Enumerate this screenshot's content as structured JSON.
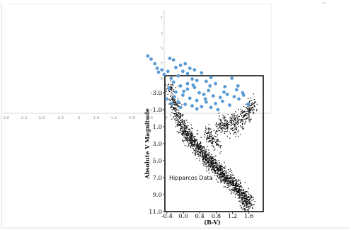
{
  "chart_data": [
    {
      "type": "scatter",
      "title": "",
      "xlabel": "",
      "ylabel": "",
      "x_ticks": [
        "-3.6",
        "-3.2",
        "-2.8",
        "-2.4",
        "-2",
        "-1.6",
        "-1.2",
        "-0.8",
        "-0.4",
        "0",
        "2"
      ],
      "y_ticks": [
        "1",
        "3",
        "5",
        "7",
        "9",
        "11",
        "13"
      ],
      "ylim": [
        15,
        1
      ],
      "series": [
        {
          "color": "#5b9bd5",
          "points": [
            [
              -0.35,
              6.0
            ],
            [
              -0.28,
              6.4
            ],
            [
              -0.2,
              7.0
            ],
            [
              -0.15,
              7.6
            ],
            [
              -0.12,
              8.1
            ],
            [
              -0.05,
              7.8
            ],
            [
              0.0,
              8.4
            ],
            [
              0.08,
              8.0
            ],
            [
              0.12,
              6.3
            ],
            [
              0.15,
              8.9
            ],
            [
              0.2,
              6.5
            ],
            [
              0.25,
              7.5
            ],
            [
              0.3,
              8.6
            ],
            [
              0.35,
              7.2
            ],
            [
              0.4,
              8.0
            ],
            [
              0.45,
              7.0
            ],
            [
              0.5,
              8.3
            ],
            [
              0.55,
              7.6
            ],
            [
              0.6,
              9.0
            ],
            [
              0.65,
              7.8
            ],
            [
              0.7,
              9.2
            ],
            [
              0.8,
              8.2
            ],
            [
              0.9,
              9.3
            ],
            [
              1.0,
              8.8
            ],
            [
              1.1,
              9.6
            ],
            [
              1.3,
              10.0
            ],
            [
              1.45,
              8.9
            ],
            [
              1.55,
              10.4
            ],
            [
              1.7,
              11.1
            ],
            [
              1.8,
              12.3
            ],
            [
              0.2,
              9.4
            ],
            [
              0.35,
              9.9
            ],
            [
              0.5,
              10.3
            ],
            [
              0.65,
              10.1
            ],
            [
              0.75,
              10.8
            ],
            [
              0.85,
              11.0
            ],
            [
              0.95,
              10.5
            ],
            [
              1.05,
              11.2
            ],
            [
              1.2,
              11.4
            ],
            [
              1.35,
              11.0
            ],
            [
              1.5,
              11.3
            ],
            [
              1.6,
              11.6
            ],
            [
              0.1,
              10.2
            ],
            [
              0.25,
              10.7
            ],
            [
              0.4,
              11.1
            ],
            [
              0.55,
              11.5
            ],
            [
              0.7,
              11.8
            ],
            [
              0.9,
              12.0
            ],
            [
              1.1,
              12.2
            ],
            [
              1.25,
              11.9
            ],
            [
              1.4,
              12.4
            ],
            [
              0.3,
              12.0
            ],
            [
              0.45,
              12.3
            ],
            [
              0.6,
              12.5
            ],
            [
              0.8,
              12.6
            ],
            [
              1.0,
              12.7
            ],
            [
              0.05,
              11.6
            ],
            [
              0.15,
              12.2
            ],
            [
              0.35,
              12.7
            ],
            [
              0.7,
              12.9
            ],
            [
              1.15,
              13.0
            ],
            [
              0.5,
              9.6
            ],
            [
              0.62,
              9.8
            ],
            [
              0.42,
              10.6
            ],
            [
              0.88,
              11.6
            ],
            [
              0.22,
              11.3
            ],
            [
              1.58,
              9.9
            ],
            [
              1.68,
              10.8
            ],
            [
              0.98,
              9.9
            ],
            [
              1.28,
              10.7
            ]
          ]
        }
      ]
    },
    {
      "type": "scatter",
      "title": "",
      "xlabel": "(B-V)",
      "ylabel": "Absolute V Magnitude",
      "annotation": "Hipparcos Data",
      "x_ticks": [
        "-0.4",
        "0.0",
        "0.4",
        "0.8",
        "1.2",
        "1.6"
      ],
      "y_ticks": [
        "-3.0",
        "-1.0",
        "1.0",
        "3.0",
        "5.0",
        "7.0",
        "9.0",
        "11.0"
      ],
      "xlim": [
        -0.45,
        1.95
      ],
      "ylim": [
        -5,
        11
      ],
      "series": [
        {
          "color": "#111111",
          "points": [
            [
              -0.3,
              -3.5
            ],
            [
              -0.25,
              -2.0
            ],
            [
              -0.2,
              -1.2
            ],
            [
              -0.15,
              -0.5
            ],
            [
              -0.1,
              0.2
            ],
            [
              -0.05,
              0.8
            ],
            [
              0.0,
              1.2
            ],
            [
              0.05,
              1.6
            ],
            [
              0.1,
              2.0
            ],
            [
              0.15,
              2.3
            ],
            [
              0.2,
              2.6
            ],
            [
              0.25,
              2.9
            ],
            [
              0.3,
              3.2
            ],
            [
              0.35,
              3.5
            ],
            [
              0.4,
              3.8
            ],
            [
              0.45,
              4.1
            ],
            [
              0.5,
              4.3
            ],
            [
              0.55,
              4.6
            ],
            [
              0.6,
              4.8
            ],
            [
              0.65,
              5.1
            ],
            [
              0.7,
              5.3
            ],
            [
              0.75,
              5.6
            ],
            [
              0.8,
              5.8
            ],
            [
              0.85,
              6.1
            ],
            [
              0.9,
              6.3
            ],
            [
              0.95,
              6.6
            ],
            [
              1.0,
              6.8
            ],
            [
              1.05,
              7.0
            ],
            [
              1.1,
              7.3
            ],
            [
              1.15,
              7.5
            ],
            [
              1.2,
              7.8
            ],
            [
              1.25,
              8.0
            ],
            [
              1.3,
              8.3
            ],
            [
              1.35,
              8.5
            ],
            [
              1.4,
              8.8
            ],
            [
              1.45,
              9.1
            ],
            [
              1.5,
              9.4
            ],
            [
              1.55,
              9.7
            ],
            [
              1.6,
              10.0
            ],
            [
              1.5,
              10.2
            ],
            [
              0.9,
              0.8
            ],
            [
              1.0,
              0.6
            ],
            [
              1.1,
              0.9
            ],
            [
              1.2,
              0.5
            ],
            [
              1.3,
              0.8
            ],
            [
              1.4,
              0.2
            ],
            [
              1.5,
              -0.4
            ],
            [
              1.6,
              -1.0
            ],
            [
              1.7,
              -1.4
            ],
            [
              0.6,
              1.8
            ],
            [
              0.7,
              2.4
            ],
            [
              0.8,
              3.0
            ]
          ]
        }
      ]
    }
  ]
}
